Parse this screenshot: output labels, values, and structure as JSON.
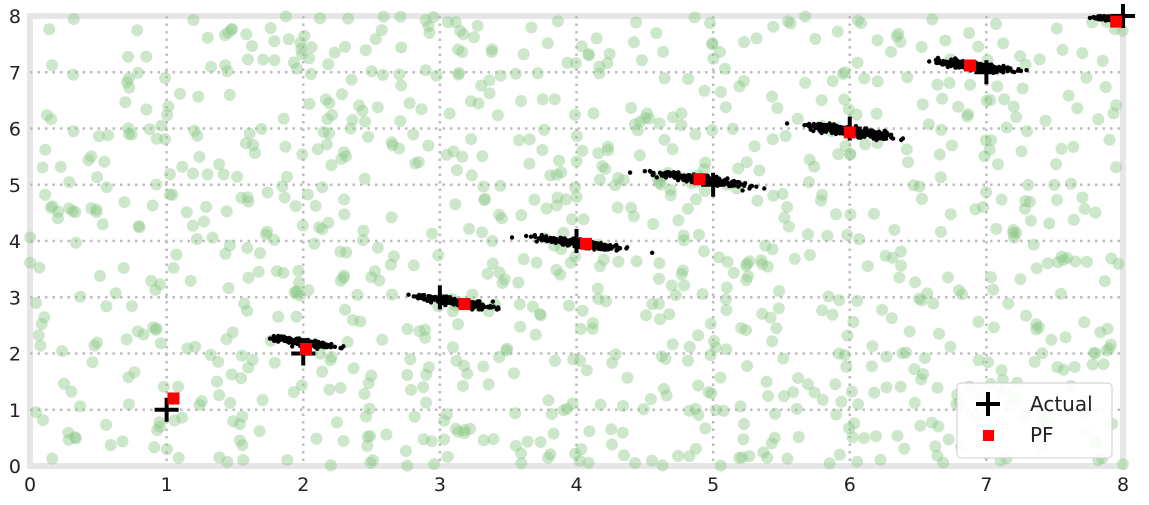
{
  "chart_data": {
    "type": "scatter",
    "title": "",
    "xlabel": "",
    "ylabel": "",
    "xlim": [
      0,
      8
    ],
    "ylim": [
      0,
      8
    ],
    "xticks": [
      "0",
      "1",
      "2",
      "3",
      "4",
      "5",
      "6",
      "7",
      "8"
    ],
    "yticks": [
      "0",
      "1",
      "2",
      "3",
      "4",
      "5",
      "6",
      "7",
      "8"
    ],
    "grid": true,
    "grid_style": "dotted",
    "legend_position": "lower-right",
    "legend": [
      {
        "label": "Actual",
        "marker": "plus",
        "color": "#000000"
      },
      {
        "label": "PF",
        "marker": "square",
        "color": "#ff0000"
      }
    ],
    "actual": {
      "x": [
        1.0,
        2.0,
        3.0,
        4.0,
        5.0,
        6.0,
        7.0,
        8.0
      ],
      "y": [
        1.0,
        2.0,
        3.0,
        4.0,
        5.0,
        6.0,
        7.0,
        8.0
      ]
    },
    "pf_estimate": {
      "x": [
        1.05,
        2.02,
        3.18,
        4.07,
        4.9,
        6.0,
        6.88,
        7.95
      ],
      "y": [
        1.2,
        2.08,
        2.88,
        3.95,
        5.1,
        5.93,
        7.12,
        7.9
      ]
    },
    "particle_clouds": [
      {
        "cx": 2.0,
        "cy": 2.2,
        "angle_deg": -20,
        "spread": [
          0.2,
          0.05
        ],
        "color": "#000000"
      },
      {
        "cx": 3.15,
        "cy": 2.9,
        "angle_deg": -20,
        "spread": [
          0.26,
          0.06
        ],
        "color": "#000000"
      },
      {
        "cx": 4.05,
        "cy": 3.95,
        "angle_deg": -19,
        "spread": [
          0.33,
          0.06
        ],
        "color": "#000000"
      },
      {
        "cx": 4.9,
        "cy": 5.1,
        "angle_deg": -19,
        "spread": [
          0.35,
          0.06
        ],
        "color": "#000000"
      },
      {
        "cx": 6.0,
        "cy": 5.95,
        "angle_deg": -18,
        "spread": [
          0.32,
          0.07
        ],
        "color": "#000000"
      },
      {
        "cx": 6.9,
        "cy": 7.12,
        "angle_deg": -17,
        "spread": [
          0.28,
          0.06
        ],
        "color": "#000000"
      },
      {
        "cx": 7.92,
        "cy": 7.95,
        "angle_deg": -15,
        "spread": [
          0.12,
          0.03
        ],
        "color": "#000000"
      }
    ],
    "initial_particles": {
      "count": 1000,
      "x_range": [
        0,
        8
      ],
      "y_range": [
        0,
        8
      ],
      "color": "#8fca8a",
      "opacity": 0.45
    }
  }
}
